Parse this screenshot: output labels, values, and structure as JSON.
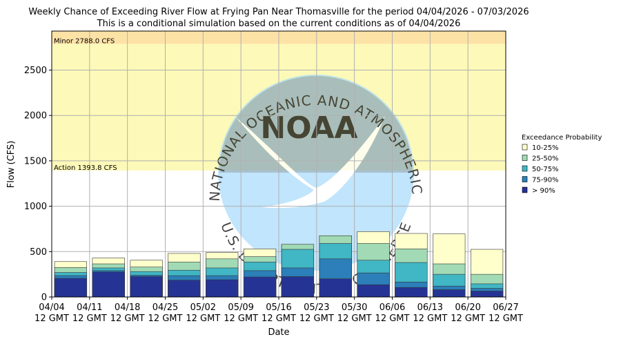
{
  "chart_data": {
    "type": "bar",
    "title_line1": "Weekly Chance of Exceeding River Flow at Frying Pan Near Thomasville for the period 04/04/2026 - 07/03/2026",
    "title_line2": "This is a conditional simulation based on the current conditions as of 04/04/2026",
    "xlabel": "Date",
    "ylabel": "Flow (CFS)",
    "ylim": [
      0,
      2930
    ],
    "yticks": [
      0,
      500,
      1000,
      1500,
      2000,
      2500
    ],
    "xtick_dates": [
      "04/04",
      "04/11",
      "04/18",
      "04/25",
      "05/02",
      "05/09",
      "05/16",
      "05/23",
      "05/30",
      "06/06",
      "06/13",
      "06/20",
      "06/27"
    ],
    "xtick_time": "12 GMT",
    "thresholds": [
      {
        "name": "Minor",
        "value": 2788.0,
        "label": "Minor 2788.0 CFS",
        "color": "#fde2a6"
      },
      {
        "name": "Action",
        "value": 1393.8,
        "label": "Action 1393.8 CFS",
        "color": "#fdf9b8"
      }
    ],
    "legend_title": "Exceedance Probability",
    "legend_position": "right",
    "series": [
      {
        "name": "10-25%",
        "color": "#ffffcc",
        "values": [
          390,
          430,
          405,
          480,
          490,
          530,
          580,
          675,
          720,
          700,
          695,
          525
        ]
      },
      {
        "name": "25-50%",
        "color": "#a1dab4",
        "values": [
          325,
          365,
          330,
          385,
          420,
          445,
          580,
          675,
          590,
          530,
          365,
          250
        ]
      },
      {
        "name": "50-75%",
        "color": "#41b6c4",
        "values": [
          270,
          320,
          280,
          295,
          320,
          385,
          525,
          590,
          405,
          380,
          250,
          145
        ]
      },
      {
        "name": "75-90%",
        "color": "#2c7fb8",
        "values": [
          235,
          290,
          240,
          235,
          235,
          290,
          320,
          420,
          265,
          165,
          120,
          95
        ]
      },
      {
        "name": "> 90%",
        "color": "#253494",
        "values": [
          205,
          275,
          225,
          185,
          190,
          220,
          225,
          200,
          135,
          105,
          80,
          65
        ]
      }
    ],
    "watermark": {
      "logo_text": "NOAA",
      "top_arc": "NATIONAL OCEANIC AND ATMOSPHERIC ADMINISTRATION",
      "bottom_arc": "U.S. DEPARTMENT OF COMMERCE"
    }
  }
}
